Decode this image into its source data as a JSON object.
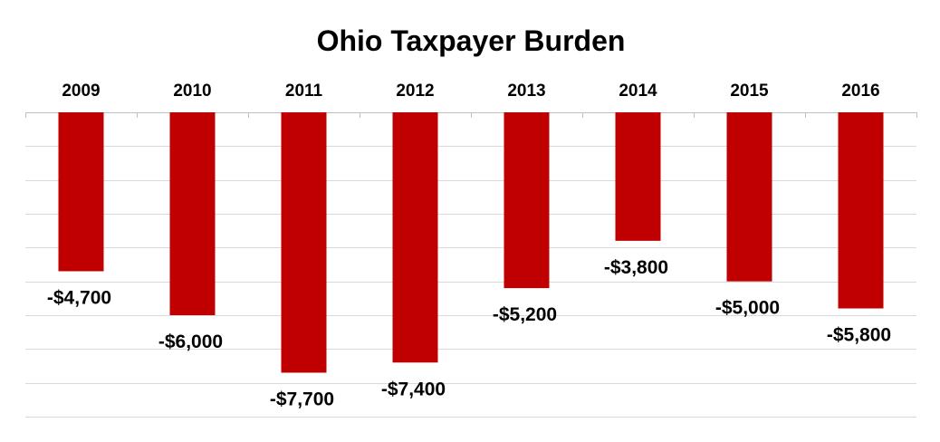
{
  "chart_data": {
    "type": "bar",
    "title": "Ohio Taxpayer Burden",
    "xlabel": "",
    "ylabel": "",
    "categories": [
      "2009",
      "2010",
      "2011",
      "2012",
      "2013",
      "2014",
      "2015",
      "2016"
    ],
    "values": [
      -4700,
      -6000,
      -7700,
      -7400,
      -5200,
      -3800,
      -5000,
      -5800
    ],
    "data_labels": [
      "-$4,700",
      "-$6,000",
      "-$7,700",
      "-$7,400",
      "-$5,200",
      "-$3,800",
      "-$5,000",
      "-$5,800"
    ],
    "ylim": [
      -9000,
      0
    ],
    "grid": true,
    "category_axis_position": "top",
    "value_axis_visible": false,
    "legend": "none",
    "bar_color": "#C00000",
    "grid_color": "#D9D9D9"
  }
}
